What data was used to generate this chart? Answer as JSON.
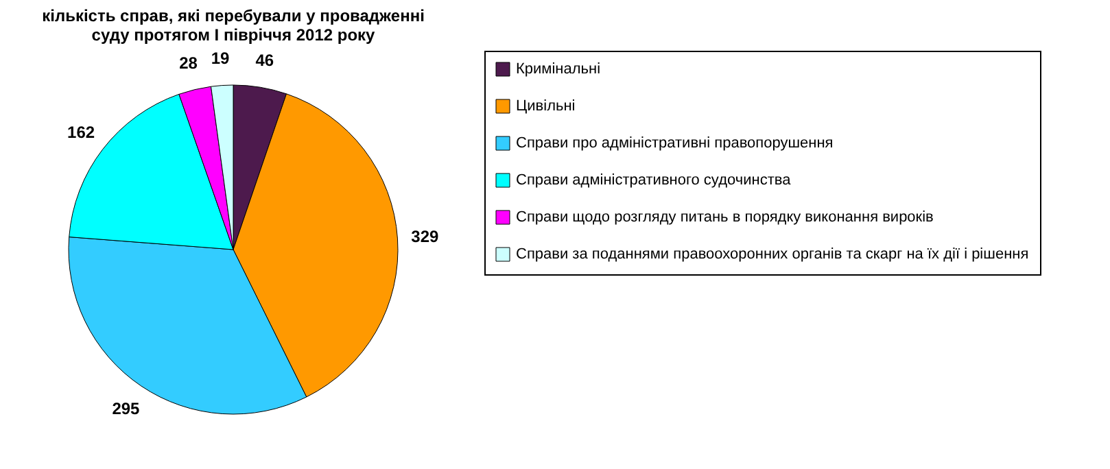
{
  "chart_data": {
    "type": "pie",
    "title": "кількість справ, які перебували у провадженні суду протягом I  півріччя 2012 року",
    "categories": [
      "Кримінальні",
      "Цивільні",
      "Справи про адміністративні правопорушення",
      "Справи адміністративного судочинства",
      "Справи щодо розгляду питань в порядку виконання вироків",
      "Справи за поданнями правоохоронних органів та скарг на їх дії і рішення"
    ],
    "values": [
      46,
      329,
      295,
      162,
      28,
      19
    ],
    "colors": [
      "#4d1a4d",
      "#ff9900",
      "#33ccff",
      "#00ffff",
      "#ff00ff",
      "#ccffff"
    ],
    "data_labels": true,
    "legend": "right"
  }
}
